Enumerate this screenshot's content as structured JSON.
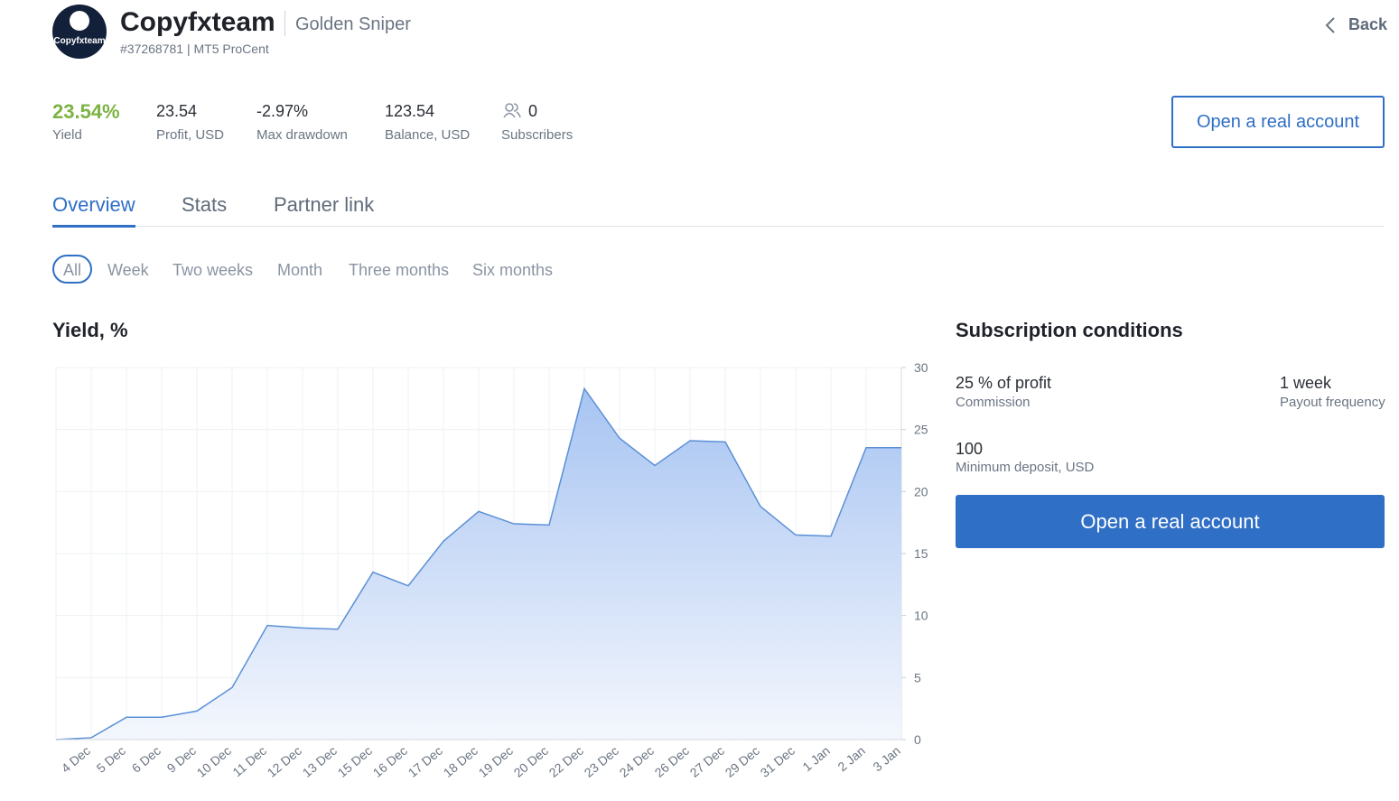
{
  "header": {
    "name": "Copyfxteam",
    "strategy": "Golden Sniper",
    "account": "#37268781 | MT5 ProCent",
    "back": "Back",
    "logo_text": "Copyfxteam"
  },
  "stats": [
    {
      "value": "23.54%",
      "label": "Yield"
    },
    {
      "value": "23.54",
      "label": "Profit, USD"
    },
    {
      "value": "-2.97%",
      "label": "Max drawdown"
    },
    {
      "value": "123.54",
      "label": "Balance, USD"
    },
    {
      "value": "0",
      "label": "Subscribers"
    }
  ],
  "open_account": "Open a real account",
  "tabs": [
    "Overview",
    "Stats",
    "Partner link"
  ],
  "periods": [
    "All",
    "Week",
    "Two weeks",
    "Month",
    "Three months",
    "Six months"
  ],
  "chart_data": {
    "type": "area",
    "title": "Yield, %",
    "categories": [
      null,
      "4 Dec",
      "5 Dec",
      "6 Dec",
      "9 Dec",
      "10 Dec",
      "11 Dec",
      "12 Dec",
      "13 Dec",
      "15 Dec",
      "16 Dec",
      "17 Dec",
      "18 Dec",
      "19 Dec",
      "20 Dec",
      "22 Dec",
      "23 Dec",
      "24 Dec",
      "26 Dec",
      "27 Dec",
      "29 Dec",
      "31 Dec",
      "1 Jan",
      "2 Jan",
      "3 Jan"
    ],
    "values": [
      0,
      0.15,
      1.8,
      1.8,
      2.3,
      4.2,
      9.2,
      9.0,
      8.9,
      13.5,
      12.4,
      16.0,
      18.4,
      17.4,
      17.3,
      28.3,
      24.3,
      22.1,
      24.1,
      24.0,
      18.8,
      16.5,
      16.4,
      23.54,
      23.54
    ],
    "color": "#5b8fd6",
    "ylim": [
      0,
      30
    ],
    "yticks": [
      0,
      5,
      10,
      15,
      20,
      25,
      30
    ],
    "grid": true
  },
  "conditions": {
    "title": "Subscription conditions",
    "items": [
      {
        "value": "25 % of profit",
        "label": "Commission"
      },
      {
        "value": "1 week",
        "label": "Payout frequency"
      },
      {
        "value": "100",
        "label": "Minimum deposit, USD"
      }
    ],
    "button": "Open a real account"
  }
}
